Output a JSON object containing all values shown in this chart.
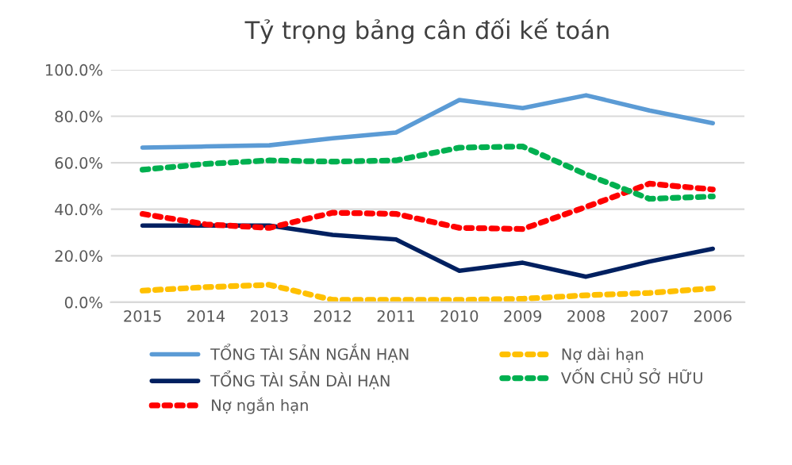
{
  "chart_data": {
    "type": "line",
    "title": "Tỷ trọng bảng cân đối kế toán",
    "categories": [
      "2015",
      "2014",
      "2013",
      "2012",
      "2011",
      "2010",
      "2009",
      "2008",
      "2007",
      "2006"
    ],
    "series": [
      {
        "name": "TỔNG TÀI SẢN NGẮN HẠN",
        "color": "#5b9bd5",
        "line_style": "solid",
        "values": [
          66.5,
          67,
          67.5,
          70.5,
          73,
          87,
          83.5,
          89,
          82.5,
          77
        ]
      },
      {
        "name": "TỔNG TÀI SẢN DÀI HẠN",
        "color": "#002060",
        "line_style": "solid",
        "values": [
          33,
          33,
          33,
          29,
          27,
          13.5,
          17,
          11,
          17.5,
          23
        ]
      },
      {
        "name": "Nợ ngắn hạn",
        "color": "#ff0000",
        "line_style": "dotted",
        "values": [
          38,
          33.5,
          32,
          38.5,
          38,
          32,
          31.5,
          41,
          51,
          48.5
        ]
      },
      {
        "name": "Nợ dài hạn",
        "color": "#ffc000",
        "line_style": "dotted",
        "values": [
          5,
          6.5,
          7.5,
          1,
          1,
          1,
          1.5,
          3,
          4,
          6
        ]
      },
      {
        "name": "VỐN CHỦ SỞ HỮU",
        "color": "#00b050",
        "line_style": "dotted",
        "values": [
          57,
          59.5,
          61,
          60.5,
          61,
          66.5,
          67,
          55,
          44.5,
          45.5
        ]
      }
    ],
    "ylim": [
      0,
      100
    ],
    "yticks": [
      {
        "value": 0,
        "label": "0.0%"
      },
      {
        "value": 20,
        "label": "20.0%"
      },
      {
        "value": 40,
        "label": "40.0%"
      },
      {
        "value": 60,
        "label": "60.0%"
      },
      {
        "value": 80,
        "label": "80.0%"
      },
      {
        "value": 100,
        "label": "100.0%"
      }
    ],
    "grid": "y",
    "legend": "bottom",
    "marker": "none"
  }
}
